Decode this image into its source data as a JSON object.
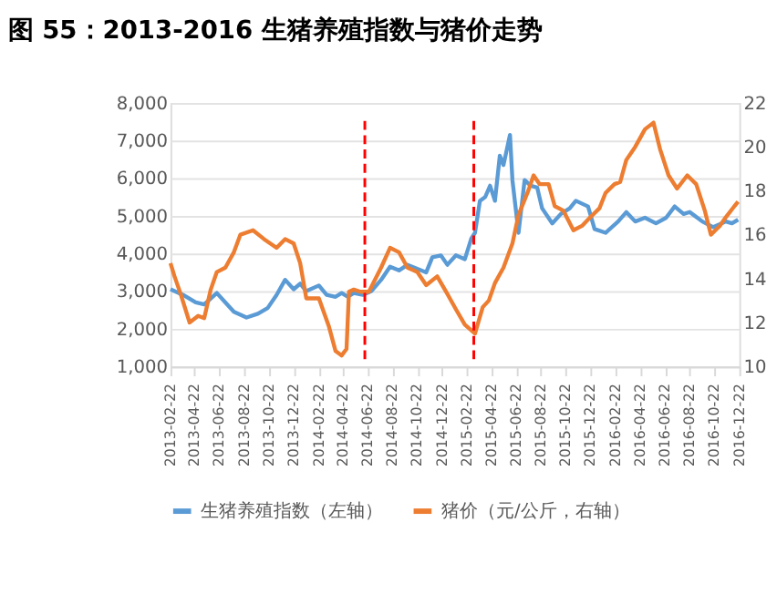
{
  "chart_data": {
    "type": "line",
    "title": "图 55：2013-2016 生猪养殖指数与猪价走势",
    "xlim": [
      "2013-02-22",
      "2016-12-22"
    ],
    "xticks": [
      "2013-02-22",
      "2013-04-22",
      "2013-06-22",
      "2013-08-22",
      "2013-10-22",
      "2013-12-22",
      "2014-02-22",
      "2014-04-22",
      "2014-06-22",
      "2014-08-22",
      "2014-10-22",
      "2014-12-22",
      "2015-02-22",
      "2015-04-22",
      "2015-06-22",
      "2015-08-22",
      "2015-10-22",
      "2015-12-22",
      "2016-02-22",
      "2016-04-22",
      "2016-06-22",
      "2016-08-22",
      "2016-10-22",
      "2016-12-22"
    ],
    "ylim": [
      1000,
      8000
    ],
    "yticks": [
      {
        "value": 1000,
        "label": "1,000"
      },
      {
        "value": 2000,
        "label": "2,000"
      },
      {
        "value": 3000,
        "label": "3,000"
      },
      {
        "value": 4000,
        "label": "4,000"
      },
      {
        "value": 5000,
        "label": "5,000"
      },
      {
        "value": 6000,
        "label": "6,000"
      },
      {
        "value": 7000,
        "label": "7,000"
      },
      {
        "value": 8000,
        "label": "8,000"
      }
    ],
    "y2lim": [
      10,
      22
    ],
    "y2ticks": [
      10,
      12,
      14,
      16,
      18,
      20,
      22
    ],
    "grid": "y",
    "legend": "bottom",
    "line_style": "solid",
    "marker": "none",
    "ref_lines": [
      {
        "axis": "x",
        "value": "2014-06-15",
        "color": "#ff0000",
        "line_style": "dashed"
      },
      {
        "axis": "x",
        "value": "2015-03-10",
        "color": "#ff0000",
        "line_style": "dashed"
      }
    ],
    "series": [
      {
        "name": "生猪养殖指数（左轴）",
        "color": "#5b9bd5",
        "axis": "y",
        "x": [
          "2013-02-22",
          "2013-03-25",
          "2013-04-25",
          "2013-05-16",
          "2013-06-16",
          "2013-07-07",
          "2013-07-28",
          "2013-08-28",
          "2013-09-25",
          "2013-10-19",
          "2013-11-10",
          "2013-12-01",
          "2013-12-22",
          "2014-01-07",
          "2014-01-22",
          "2014-02-22",
          "2014-03-13",
          "2014-04-04",
          "2014-04-19",
          "2014-05-04",
          "2014-05-19",
          "2014-06-10",
          "2014-07-01",
          "2014-07-25",
          "2014-08-16",
          "2014-09-07",
          "2014-09-28",
          "2014-11-13",
          "2014-11-28",
          "2014-12-19",
          "2015-01-04",
          "2015-01-25",
          "2015-02-16",
          "2015-03-04",
          "2015-03-13",
          "2015-03-25",
          "2015-04-07",
          "2015-04-19",
          "2015-05-01",
          "2015-05-13",
          "2015-05-22",
          "2015-06-07",
          "2015-06-13",
          "2015-06-28",
          "2015-07-13",
          "2015-07-28",
          "2015-08-13",
          "2015-08-25",
          "2015-09-19",
          "2015-10-10",
          "2015-11-01",
          "2015-11-16",
          "2015-12-16",
          "2016-01-01",
          "2016-01-28",
          "2016-02-28",
          "2016-03-19",
          "2016-04-10",
          "2016-05-04",
          "2016-05-31",
          "2016-06-25",
          "2016-07-16",
          "2016-08-07",
          "2016-08-22",
          "2016-09-22",
          "2016-10-19",
          "2016-11-19",
          "2016-12-04",
          "2016-12-19"
        ],
        "values": [
          3050,
          2900,
          2700,
          2650,
          2950,
          2700,
          2450,
          2300,
          2400,
          2550,
          2900,
          3300,
          3050,
          3200,
          3000,
          3150,
          2900,
          2850,
          2950,
          2850,
          2950,
          2900,
          3000,
          3300,
          3650,
          3550,
          3700,
          3500,
          3900,
          3950,
          3700,
          3950,
          3850,
          4400,
          4550,
          5400,
          5500,
          5800,
          5400,
          6600,
          6350,
          7150,
          5950,
          4550,
          5950,
          5800,
          5750,
          5200,
          4800,
          5050,
          5200,
          5400,
          5250,
          4650,
          4550,
          4850,
          5100,
          4850,
          4950,
          4800,
          4950,
          5250,
          5050,
          5100,
          4850,
          4700,
          4850,
          4800,
          4900
        ]
      },
      {
        "name": "猪价（元/公斤，右轴）",
        "color": "#ed7d31",
        "axis": "y2",
        "x": [
          "2013-02-22",
          "2013-03-04",
          "2013-03-19",
          "2013-04-10",
          "2013-05-01",
          "2013-05-16",
          "2013-06-01",
          "2013-06-16",
          "2013-07-07",
          "2013-07-28",
          "2013-08-13",
          "2013-09-13",
          "2013-10-10",
          "2013-11-10",
          "2013-12-01",
          "2013-12-22",
          "2014-01-07",
          "2014-01-22",
          "2014-02-22",
          "2014-03-19",
          "2014-04-04",
          "2014-04-19",
          "2014-05-01",
          "2014-05-07",
          "2014-05-19",
          "2014-06-04",
          "2014-06-25",
          "2014-07-25",
          "2014-08-16",
          "2014-09-07",
          "2014-09-28",
          "2014-10-22",
          "2014-11-13",
          "2014-12-10",
          "2015-01-04",
          "2015-01-10",
          "2015-01-25",
          "2015-02-16",
          "2015-03-13",
          "2015-04-01",
          "2015-04-16",
          "2015-05-01",
          "2015-05-22",
          "2015-06-13",
          "2015-06-28",
          "2015-07-22",
          "2015-08-04",
          "2015-08-19",
          "2015-09-10",
          "2015-09-25",
          "2015-10-16",
          "2015-11-10",
          "2015-12-01",
          "2015-12-22",
          "2016-01-13",
          "2016-01-28",
          "2016-02-19",
          "2016-03-04",
          "2016-03-19",
          "2016-04-10",
          "2016-05-04",
          "2016-05-25",
          "2016-06-10",
          "2016-07-01",
          "2016-07-22",
          "2016-08-16",
          "2016-09-07",
          "2016-09-28",
          "2016-10-13",
          "2016-11-04",
          "2016-11-19",
          "2016-12-10",
          "2016-12-19"
        ],
        "values": [
          14.7,
          14.1,
          13.3,
          12.0,
          12.3,
          12.2,
          13.5,
          14.3,
          14.5,
          15.2,
          16.0,
          16.2,
          15.8,
          15.4,
          15.8,
          15.6,
          14.7,
          13.1,
          13.1,
          11.8,
          10.7,
          10.5,
          10.8,
          13.4,
          13.5,
          13.4,
          13.4,
          14.5,
          15.4,
          15.2,
          14.5,
          14.3,
          13.7,
          14.1,
          13.3,
          13.1,
          12.6,
          11.9,
          11.5,
          12.7,
          13.0,
          13.8,
          14.5,
          15.6,
          16.9,
          18.0,
          18.7,
          18.3,
          18.3,
          17.3,
          17.1,
          16.2,
          16.4,
          16.8,
          17.2,
          17.9,
          18.3,
          18.4,
          19.4,
          20.0,
          20.8,
          21.1,
          19.9,
          18.7,
          18.1,
          18.7,
          18.3,
          17.1,
          16.0,
          16.4,
          16.8,
          17.3,
          17.5
        ]
      }
    ]
  }
}
